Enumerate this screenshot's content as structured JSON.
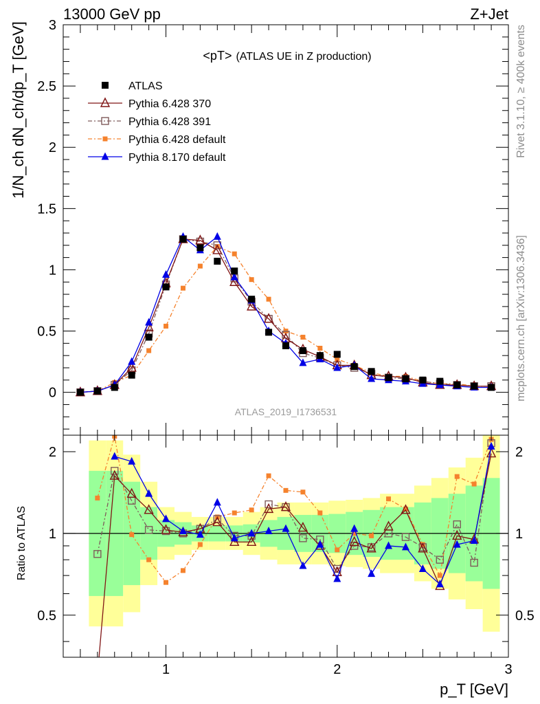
{
  "header": {
    "left": "13000 GeV pp",
    "right": "Z+Jet"
  },
  "side": {
    "rivet": "Rivet 3.1.10, ≥ 400k events",
    "mcplots": "mcplots.cern.ch [arXiv:1306.3436]"
  },
  "colors": {
    "ATLAS": "#000000",
    "p370": "#7f1414",
    "p391": "#7f5a5a",
    "p6def": "#f5822d",
    "p8def": "#0000e6",
    "band_inner": "#99ff99",
    "band_outer": "#ffff99"
  },
  "chart_data": [
    {
      "type": "line",
      "title_main": "<pT>",
      "title_sub": "(ATLAS UE in Z production)",
      "ylabel": "1/N_ch dN_ch/dp_T [GeV]",
      "analysis": "ATLAS_2019_I1736531",
      "xlim": [
        0.4,
        3.0
      ],
      "ylim": [
        -0.35,
        3.0
      ],
      "yticks": [
        "0",
        "0.5",
        "1",
        "1.5",
        "2",
        "2.5",
        "3"
      ],
      "legend_position": "top-left",
      "x": [
        0.5,
        0.6,
        0.7,
        0.8,
        0.9,
        1.0,
        1.1,
        1.2,
        1.3,
        1.4,
        1.5,
        1.6,
        1.7,
        1.8,
        1.9,
        2.0,
        2.1,
        2.2,
        2.3,
        2.4,
        2.5,
        2.6,
        2.7,
        2.8,
        2.9
      ],
      "series": [
        {
          "name": "ATLAS",
          "marker": "square",
          "values": [
            0.0,
            0.01,
            0.04,
            0.14,
            0.45,
            0.86,
            1.25,
            1.18,
            1.07,
            0.99,
            0.76,
            0.49,
            0.38,
            0.34,
            0.3,
            0.31,
            0.21,
            0.17,
            0.12,
            0.11,
            0.1,
            0.09,
            0.06,
            0.05,
            0.04
          ]
        },
        {
          "name": "Pythia 6.428 370",
          "marker": "triangle-open",
          "values": [
            0.0,
            0.01,
            0.06,
            0.2,
            0.53,
            0.89,
            1.25,
            1.24,
            1.16,
            0.9,
            0.7,
            0.6,
            0.44,
            0.35,
            0.29,
            0.22,
            0.22,
            0.14,
            0.13,
            0.12,
            0.08,
            0.06,
            0.06,
            0.05,
            0.05
          ]
        },
        {
          "name": "Pythia 6.428 391",
          "marker": "square-open",
          "values": [
            0.0,
            0.01,
            0.06,
            0.18,
            0.48,
            0.88,
            1.25,
            1.23,
            1.2,
            0.93,
            0.74,
            0.6,
            0.47,
            0.32,
            0.28,
            0.22,
            0.2,
            0.15,
            0.12,
            0.11,
            0.09,
            0.07,
            0.06,
            0.05,
            0.05
          ]
        },
        {
          "name": "Pythia 6.428 default",
          "marker": "square-small",
          "values": [
            0.0,
            0.01,
            0.08,
            0.14,
            0.34,
            0.54,
            0.85,
            1.03,
            1.19,
            1.13,
            0.92,
            0.76,
            0.5,
            0.45,
            0.36,
            0.27,
            0.22,
            0.16,
            0.13,
            0.13,
            0.09,
            0.07,
            0.07,
            0.05,
            0.05
          ]
        },
        {
          "name": "Pythia 8.170 default",
          "marker": "triangle",
          "values": [
            0.0,
            0.01,
            0.06,
            0.25,
            0.57,
            0.96,
            1.27,
            1.16,
            1.27,
            0.94,
            0.75,
            0.5,
            0.4,
            0.24,
            0.27,
            0.2,
            0.22,
            0.11,
            0.1,
            0.09,
            0.07,
            0.06,
            0.05,
            0.04,
            0.04
          ]
        }
      ]
    },
    {
      "type": "line",
      "ylabel": "Ratio to ATLAS",
      "xlabel": "p_T [GeV]",
      "xlim": [
        0.4,
        3.0
      ],
      "ylim": [
        0.35,
        2.3
      ],
      "xticks": [
        "1",
        "2",
        "3"
      ],
      "yticks": [
        "0.5",
        "1",
        "2"
      ],
      "reference": 1.0,
      "x": [
        0.6,
        0.7,
        0.8,
        0.9,
        1.0,
        1.1,
        1.2,
        1.3,
        1.4,
        1.5,
        1.6,
        1.7,
        1.8,
        1.9,
        2.0,
        2.1,
        2.2,
        2.3,
        2.4,
        2.5,
        2.6,
        2.7,
        2.8,
        2.9
      ],
      "series": [
        {
          "name": "Pythia 6.428 370",
          "values": [
            0.3,
            1.63,
            1.4,
            1.22,
            1.03,
            1.01,
            1.04,
            1.1,
            0.93,
            0.93,
            1.23,
            1.25,
            1.05,
            0.9,
            0.72,
            0.93,
            0.88,
            1.06,
            1.22,
            0.88,
            0.64,
            0.98,
            0.95,
            1.97
          ]
        },
        {
          "name": "Pythia 6.428 391",
          "values": [
            0.84,
            1.7,
            1.32,
            1.03,
            1.02,
            1.0,
            1.04,
            1.13,
            0.98,
            0.98,
            1.28,
            1.25,
            0.96,
            0.95,
            0.74,
            0.9,
            0.89,
            1.0,
            0.97,
            0.89,
            0.8,
            1.08,
            0.78,
            2.15
          ]
        },
        {
          "name": "Pythia 6.428 default",
          "values": [
            1.35,
            2.28,
            0.99,
            0.8,
            0.66,
            0.73,
            0.91,
            1.15,
            1.19,
            1.22,
            1.63,
            1.44,
            1.42,
            1.19,
            0.87,
            1.0,
            0.98,
            1.34,
            1.23,
            0.91,
            0.7,
            1.62,
            1.52,
            2.22
          ]
        },
        {
          "name": "Pythia 8.170 default",
          "values": [
            null,
            1.92,
            1.84,
            1.4,
            1.13,
            1.02,
            0.99,
            1.3,
            0.96,
            1.0,
            1.02,
            1.04,
            0.76,
            0.91,
            0.68,
            1.04,
            0.71,
            0.9,
            0.89,
            0.74,
            0.65,
            0.91,
            0.94,
            2.09
          ]
        }
      ],
      "band_inner": [
        1.7,
        1.7,
        1.55,
        1.25,
        1.12,
        1.1,
        1.07,
        1.07,
        1.07,
        1.08,
        1.12,
        1.15,
        1.17,
        1.17,
        1.18,
        1.2,
        1.22,
        1.25,
        1.25,
        1.3,
        1.35,
        1.4,
        1.5,
        1.6
      ],
      "band_outer": [
        2.2,
        2.2,
        1.95,
        1.55,
        1.25,
        1.2,
        1.15,
        1.15,
        1.15,
        1.2,
        1.25,
        1.3,
        1.3,
        1.3,
        1.32,
        1.33,
        1.35,
        1.4,
        1.4,
        1.5,
        1.6,
        1.75,
        1.9,
        2.3
      ]
    }
  ]
}
